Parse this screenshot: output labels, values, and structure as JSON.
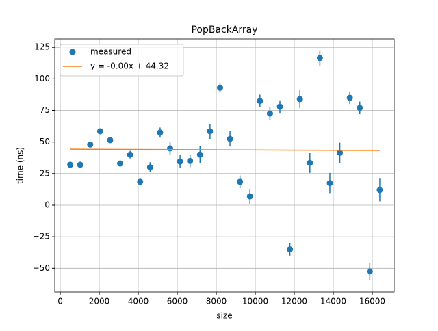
{
  "chart_data": {
    "type": "scatter",
    "title": "PopBackArray",
    "xlabel": "size",
    "ylabel": "time (ns)",
    "series": [
      {
        "name": "measured",
        "color": "#1f77b4",
        "x": [
          512,
          1024,
          1536,
          2048,
          2560,
          3072,
          3584,
          4096,
          4608,
          5120,
          5632,
          6144,
          6656,
          7168,
          7680,
          8192,
          8704,
          9216,
          9728,
          10240,
          10752,
          11264,
          11776,
          12288,
          12800,
          13312,
          13824,
          14336,
          14848,
          15360,
          15872,
          16384
        ],
        "values": [
          32,
          32,
          48,
          58.5,
          51.5,
          33,
          40,
          18.5,
          30,
          57.5,
          45,
          34.5,
          35,
          40,
          58.5,
          93,
          52.5,
          18.5,
          7,
          82.5,
          72.5,
          78,
          -35,
          84,
          33.5,
          116.5,
          17.5,
          41.5,
          85,
          77,
          -52.5,
          12
        ],
        "errors": [
          2,
          2,
          2,
          2,
          2,
          2,
          3,
          3,
          4,
          4,
          5,
          5,
          5,
          7,
          6,
          4,
          6,
          5,
          6,
          5,
          5,
          5,
          5,
          7,
          8,
          6,
          8,
          8,
          5,
          5,
          7,
          9
        ]
      },
      {
        "name": "y = -0.00x + 44.32",
        "color": "#ff7f0e",
        "x": [
          512,
          16384
        ],
        "values": [
          44.3,
          43.3
        ]
      }
    ],
    "xlim": [
      -281,
      17123
    ],
    "ylim": [
      -68.8,
      131.6
    ],
    "xticks": [
      0,
      2000,
      4000,
      6000,
      8000,
      10000,
      12000,
      14000,
      16000
    ],
    "yticks": [
      {
        "value": -50,
        "label": "−50"
      },
      {
        "value": -25,
        "label": "−25"
      },
      0,
      25,
      50,
      75,
      100,
      125
    ],
    "grid": true,
    "legend": "upper left"
  }
}
